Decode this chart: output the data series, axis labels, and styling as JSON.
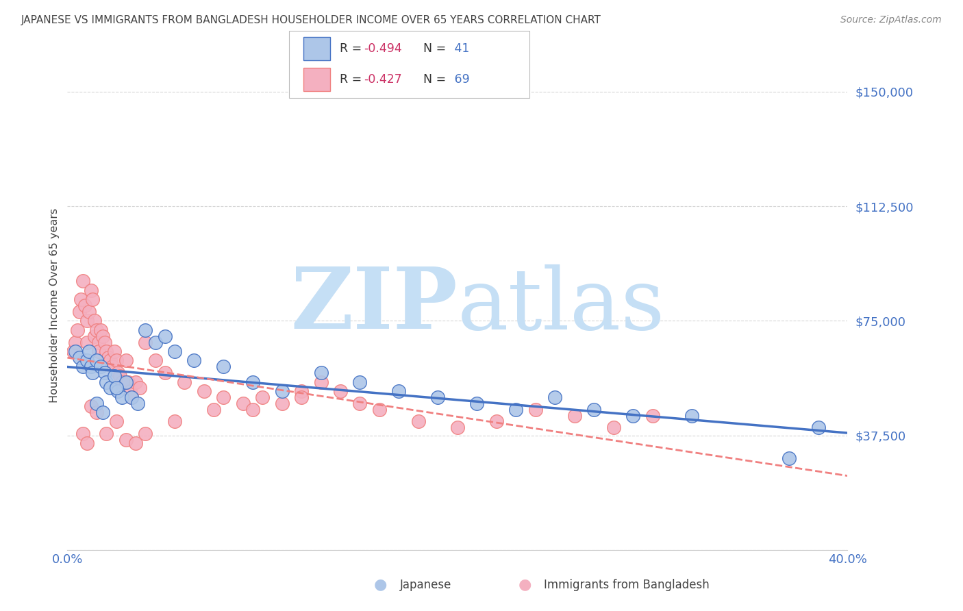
{
  "title": "JAPANESE VS IMMIGRANTS FROM BANGLADESH HOUSEHOLDER INCOME OVER 65 YEARS CORRELATION CHART",
  "source": "Source: ZipAtlas.com",
  "ylabel": "Householder Income Over 65 years",
  "xlim": [
    0.0,
    40.0
  ],
  "ylim": [
    0,
    160000
  ],
  "yticks": [
    0,
    37500,
    75000,
    112500,
    150000
  ],
  "ytick_labels": [
    "",
    "$37,500",
    "$75,000",
    "$112,500",
    "$150,000"
  ],
  "xticks": [
    0.0,
    10.0,
    20.0,
    30.0,
    40.0
  ],
  "xtick_labels": [
    "0.0%",
    "",
    "",
    "",
    "40.0%"
  ],
  "legend_r1": "-0.494",
  "legend_n1": "41",
  "legend_r2": "-0.427",
  "legend_n2": "69",
  "japanese_x": [
    0.4,
    0.6,
    0.8,
    1.0,
    1.1,
    1.2,
    1.3,
    1.5,
    1.7,
    1.9,
    2.0,
    2.2,
    2.4,
    2.6,
    2.8,
    3.0,
    3.3,
    3.6,
    4.0,
    4.5,
    5.0,
    5.5,
    6.5,
    8.0,
    9.5,
    11.0,
    13.0,
    15.0,
    17.0,
    19.0,
    21.0,
    23.0,
    25.0,
    27.0,
    29.0,
    32.0,
    37.0,
    38.5,
    2.5,
    1.5,
    1.8
  ],
  "japanese_y": [
    65000,
    63000,
    60000,
    62000,
    65000,
    60000,
    58000,
    62000,
    60000,
    58000,
    55000,
    53000,
    57000,
    52000,
    50000,
    55000,
    50000,
    48000,
    72000,
    68000,
    70000,
    65000,
    62000,
    60000,
    55000,
    52000,
    58000,
    55000,
    52000,
    50000,
    48000,
    46000,
    50000,
    46000,
    44000,
    44000,
    30000,
    40000,
    53000,
    48000,
    45000
  ],
  "bangladesh_x": [
    0.3,
    0.4,
    0.5,
    0.6,
    0.7,
    0.8,
    0.9,
    1.0,
    1.0,
    1.1,
    1.2,
    1.3,
    1.4,
    1.4,
    1.5,
    1.6,
    1.6,
    1.7,
    1.8,
    1.9,
    2.0,
    2.1,
    2.2,
    2.3,
    2.4,
    2.5,
    2.6,
    2.7,
    2.8,
    3.0,
    3.1,
    3.2,
    3.3,
    3.5,
    3.7,
    4.0,
    4.5,
    5.0,
    6.0,
    7.0,
    8.0,
    9.0,
    10.0,
    11.0,
    12.0,
    13.0,
    14.0,
    15.0,
    16.0,
    18.0,
    20.0,
    22.0,
    24.0,
    26.0,
    28.0,
    30.0,
    1.2,
    1.5,
    2.0,
    2.5,
    3.0,
    3.5,
    0.8,
    1.0,
    4.0,
    5.5,
    7.5,
    9.5,
    12.0
  ],
  "bangladesh_y": [
    65000,
    68000,
    72000,
    78000,
    82000,
    88000,
    80000,
    68000,
    75000,
    78000,
    85000,
    82000,
    75000,
    70000,
    72000,
    68000,
    65000,
    72000,
    70000,
    68000,
    65000,
    63000,
    62000,
    60000,
    65000,
    62000,
    58000,
    57000,
    55000,
    62000,
    55000,
    52000,
    50000,
    55000,
    53000,
    68000,
    62000,
    58000,
    55000,
    52000,
    50000,
    48000,
    50000,
    48000,
    52000,
    55000,
    52000,
    48000,
    46000,
    42000,
    40000,
    42000,
    46000,
    44000,
    40000,
    44000,
    47000,
    45000,
    38000,
    42000,
    36000,
    35000,
    38000,
    35000,
    38000,
    42000,
    46000,
    46000,
    50000
  ],
  "blue_line_color": "#4472c4",
  "pink_line_color": "#f08080",
  "blue_dot_color": "#adc6e8",
  "pink_dot_color": "#f4b0c0",
  "watermark_zip": "ZIP",
  "watermark_atlas": "atlas",
  "watermark_color_zip": "#c5dff5",
  "watermark_color_atlas": "#c5dff5",
  "grid_color": "#cccccc",
  "title_color": "#444444",
  "axis_tick_color": "#4472c4",
  "source_color": "#888888",
  "legend_r_color": "#cc3366",
  "legend_n_color": "#4472c4",
  "background_color": "#ffffff"
}
